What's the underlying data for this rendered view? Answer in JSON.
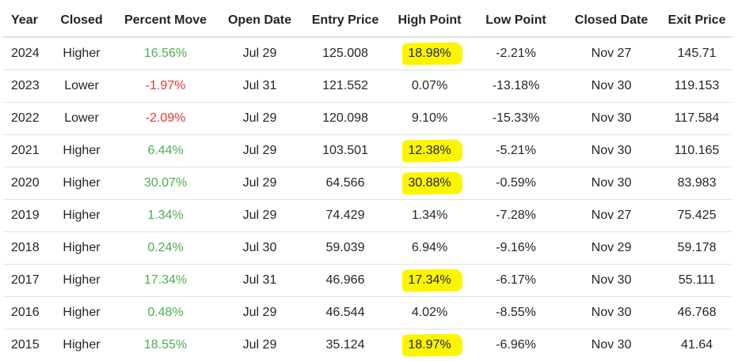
{
  "table": {
    "columns": [
      "Year",
      "Closed",
      "Percent Move",
      "Open Date",
      "Entry Price",
      "High Point",
      "Low Point",
      "Closed Date",
      "Exit Price"
    ],
    "rows": [
      {
        "year": "2024",
        "closed": "Higher",
        "percent_move": "16.56%",
        "direction": "up",
        "open_date": "Jul 29",
        "entry_price": "125.008",
        "high_point": "18.98%",
        "highlighted": true,
        "low_point": "-2.21%",
        "closed_date": "Nov 27",
        "exit_price": "145.71"
      },
      {
        "year": "2023",
        "closed": "Lower",
        "percent_move": "-1.97%",
        "direction": "down",
        "open_date": "Jul 31",
        "entry_price": "121.552",
        "high_point": "0.07%",
        "highlighted": false,
        "low_point": "-13.18%",
        "closed_date": "Nov 30",
        "exit_price": "119.153"
      },
      {
        "year": "2022",
        "closed": "Lower",
        "percent_move": "-2.09%",
        "direction": "down",
        "open_date": "Jul 29",
        "entry_price": "120.098",
        "high_point": "9.10%",
        "highlighted": false,
        "low_point": "-15.33%",
        "closed_date": "Nov 30",
        "exit_price": "117.584"
      },
      {
        "year": "2021",
        "closed": "Higher",
        "percent_move": "6.44%",
        "direction": "up",
        "open_date": "Jul 29",
        "entry_price": "103.501",
        "high_point": "12.38%",
        "highlighted": true,
        "low_point": "-5.21%",
        "closed_date": "Nov 30",
        "exit_price": "110.165"
      },
      {
        "year": "2020",
        "closed": "Higher",
        "percent_move": "30.07%",
        "direction": "up",
        "open_date": "Jul 29",
        "entry_price": "64.566",
        "high_point": "30.88%",
        "highlighted": true,
        "low_point": "-0.59%",
        "closed_date": "Nov 30",
        "exit_price": "83.983"
      },
      {
        "year": "2019",
        "closed": "Higher",
        "percent_move": "1.34%",
        "direction": "up",
        "open_date": "Jul 29",
        "entry_price": "74.429",
        "high_point": "1.34%",
        "highlighted": false,
        "low_point": "-7.28%",
        "closed_date": "Nov 27",
        "exit_price": "75.425"
      },
      {
        "year": "2018",
        "closed": "Higher",
        "percent_move": "0.24%",
        "direction": "up",
        "open_date": "Jul 30",
        "entry_price": "59.039",
        "high_point": "6.94%",
        "highlighted": false,
        "low_point": "-9.16%",
        "closed_date": "Nov 29",
        "exit_price": "59.178"
      },
      {
        "year": "2017",
        "closed": "Higher",
        "percent_move": "17.34%",
        "direction": "up",
        "open_date": "Jul 31",
        "entry_price": "46.966",
        "high_point": "17.34%",
        "highlighted": true,
        "low_point": "-6.17%",
        "closed_date": "Nov 30",
        "exit_price": "55.111"
      },
      {
        "year": "2016",
        "closed": "Higher",
        "percent_move": "0.48%",
        "direction": "up",
        "open_date": "Jul 29",
        "entry_price": "46.544",
        "high_point": "4.02%",
        "highlighted": false,
        "low_point": "-8.55%",
        "closed_date": "Nov 30",
        "exit_price": "46.768"
      },
      {
        "year": "2015",
        "closed": "Higher",
        "percent_move": "18.55%",
        "direction": "up",
        "open_date": "Jul 29",
        "entry_price": "35.124",
        "high_point": "18.97%",
        "highlighted": true,
        "low_point": "-6.96%",
        "closed_date": "Nov 30",
        "exit_price": "41.64"
      }
    ]
  },
  "colors": {
    "positive": "#4caf50",
    "negative": "#e53935",
    "highlight": "#fcf400",
    "border": "#dee2e6",
    "text": "#212529"
  }
}
